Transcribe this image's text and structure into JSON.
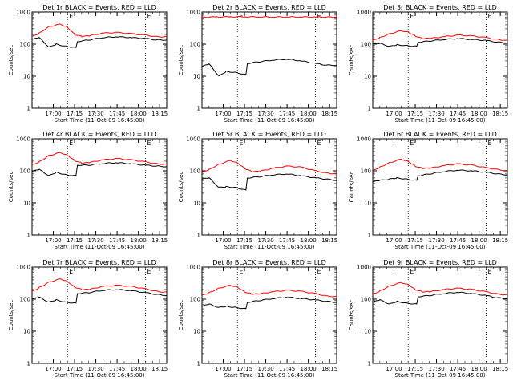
{
  "chart_data": [
    {
      "type": "line",
      "title": "Det 1r BLACK = Events, RED = LLD",
      "xlabel": "Start Time (11-Oct-09 16:45:00)",
      "ylabel": "Counts/sec",
      "yscale": "log",
      "ylim": [
        1,
        1000
      ],
      "ytick_labels": [
        "1",
        "10",
        "100",
        "1000"
      ],
      "xlim": [
        0,
        95
      ],
      "xtick_minutes": [
        15,
        30,
        45,
        60,
        75,
        90
      ],
      "xtick_labels": [
        "17:00",
        "17:15",
        "17:30",
        "17:45",
        "18:00",
        "18:15"
      ],
      "marker_lines": [
        25,
        80
      ],
      "marker_labels": [
        "E",
        "E"
      ],
      "series": [
        {
          "color": "#000000",
          "x": [
            0,
            5,
            12,
            17,
            24,
            31,
            32,
            40,
            50,
            60,
            70,
            80,
            88,
            95
          ],
          "y": [
            140,
            160,
            80,
            100,
            85,
            78,
            120,
            135,
            160,
            170,
            160,
            150,
            135,
            135
          ]
        },
        {
          "color": "#ff0000",
          "x": [
            0,
            5,
            12,
            20,
            25,
            30,
            35,
            40,
            50,
            60,
            70,
            80,
            88,
            95
          ],
          "y": [
            170,
            220,
            350,
            420,
            340,
            200,
            175,
            180,
            220,
            230,
            210,
            190,
            170,
            170
          ]
        }
      ]
    },
    {
      "type": "line",
      "title": "Det 2r BLACK = Events, RED = LLD",
      "xlabel": "Start Time (11-Oct-09 16:45:00)",
      "ylabel": "Counts/sec",
      "yscale": "log",
      "ylim": [
        1,
        1000
      ],
      "ytick_labels": [
        "1",
        "10",
        "100",
        "1000"
      ],
      "xlim": [
        0,
        95
      ],
      "xtick_minutes": [
        15,
        30,
        45,
        60,
        75,
        90
      ],
      "xtick_labels": [
        "17:00",
        "17:15",
        "17:30",
        "17:45",
        "18:00",
        "18:15"
      ],
      "marker_lines": [
        25,
        80
      ],
      "marker_labels": [
        "E",
        "E"
      ],
      "series": [
        {
          "color": "#000000",
          "x": [
            0,
            5,
            12,
            17,
            24,
            31,
            32,
            40,
            50,
            60,
            70,
            80,
            88,
            95
          ],
          "y": [
            20,
            24,
            10,
            14,
            13,
            11,
            25,
            28,
            32,
            34,
            30,
            25,
            22,
            22
          ]
        },
        {
          "color": "#ff0000",
          "x": [
            0,
            10,
            20,
            30,
            40,
            50,
            60,
            70,
            80,
            95
          ],
          "y": [
            690,
            700,
            710,
            710,
            705,
            700,
            700,
            700,
            695,
            690
          ]
        }
      ]
    },
    {
      "type": "line",
      "title": "Det 3r BLACK = Events, RED = LLD",
      "xlabel": "Start Time (11-Oct-09 16:45:00)",
      "ylabel": "Counts/sec",
      "yscale": "log",
      "ylim": [
        1,
        1000
      ],
      "ytick_labels": [
        "1",
        "10",
        "100",
        "1000"
      ],
      "xlim": [
        0,
        95
      ],
      "xtick_minutes": [
        15,
        30,
        45,
        60,
        75,
        90
      ],
      "xtick_labels": [
        "17:00",
        "17:15",
        "17:30",
        "17:45",
        "18:00",
        "18:15"
      ],
      "marker_lines": [
        25,
        80
      ],
      "marker_labels": [
        "E",
        "E"
      ],
      "series": [
        {
          "color": "#000000",
          "x": [
            0,
            5,
            12,
            17,
            24,
            31,
            32,
            40,
            50,
            60,
            70,
            80,
            88,
            95
          ],
          "y": [
            100,
            105,
            85,
            95,
            90,
            85,
            115,
            125,
            140,
            150,
            140,
            130,
            115,
            110
          ]
        },
        {
          "color": "#ff0000",
          "x": [
            0,
            5,
            12,
            20,
            25,
            30,
            35,
            40,
            50,
            60,
            70,
            80,
            88,
            95
          ],
          "y": [
            130,
            160,
            210,
            260,
            240,
            180,
            150,
            150,
            170,
            190,
            180,
            160,
            140,
            130
          ]
        }
      ]
    },
    {
      "type": "line",
      "title": "Det 4r BLACK = Events, RED = LLD",
      "xlabel": "Start Time (11-Oct-09 16:45:00)",
      "ylabel": "Counts/sec",
      "yscale": "log",
      "ylim": [
        1,
        1000
      ],
      "ytick_labels": [
        "1",
        "10",
        "100",
        "1000"
      ],
      "xlim": [
        0,
        95
      ],
      "xtick_minutes": [
        15,
        30,
        45,
        60,
        75,
        90
      ],
      "xtick_labels": [
        "17:00",
        "17:15",
        "17:30",
        "17:45",
        "18:00",
        "18:15"
      ],
      "marker_lines": [
        25,
        80
      ],
      "marker_labels": [
        "E",
        "E"
      ],
      "series": [
        {
          "color": "#000000",
          "x": [
            0,
            5,
            12,
            17,
            24,
            31,
            32,
            40,
            50,
            60,
            70,
            80,
            88,
            95
          ],
          "y": [
            95,
            110,
            70,
            90,
            75,
            70,
            150,
            150,
            170,
            180,
            165,
            150,
            140,
            135
          ]
        },
        {
          "color": "#ff0000",
          "x": [
            0,
            5,
            12,
            20,
            25,
            30,
            35,
            40,
            50,
            60,
            70,
            80,
            88,
            95
          ],
          "y": [
            150,
            190,
            300,
            370,
            310,
            210,
            175,
            180,
            220,
            240,
            220,
            190,
            165,
            160
          ]
        }
      ]
    },
    {
      "type": "line",
      "title": "Det 5r BLACK = Events, RED = LLD",
      "xlabel": "Start Time (11-Oct-09 16:45:00)",
      "ylabel": "Counts/sec",
      "yscale": "log",
      "ylim": [
        1,
        1000
      ],
      "ytick_labels": [
        "1",
        "10",
        "100",
        "1000"
      ],
      "xlim": [
        0,
        95
      ],
      "xtick_minutes": [
        15,
        30,
        45,
        60,
        75,
        90
      ],
      "xtick_labels": [
        "17:00",
        "17:15",
        "17:30",
        "17:45",
        "18:00",
        "18:15"
      ],
      "marker_lines": [
        25,
        80
      ],
      "marker_labels": [
        "E",
        "E"
      ],
      "series": [
        {
          "color": "#000000",
          "x": [
            0,
            5,
            12,
            17,
            24,
            31,
            32,
            40,
            50,
            60,
            70,
            80,
            88,
            95
          ],
          "y": [
            55,
            60,
            30,
            32,
            30,
            25,
            60,
            65,
            75,
            80,
            70,
            60,
            55,
            50
          ]
        },
        {
          "color": "#ff0000",
          "x": [
            0,
            5,
            12,
            20,
            25,
            30,
            35,
            40,
            50,
            60,
            70,
            80,
            88,
            95
          ],
          "y": [
            90,
            110,
            160,
            210,
            180,
            120,
            95,
            95,
            120,
            140,
            130,
            100,
            85,
            80
          ]
        }
      ]
    },
    {
      "type": "line",
      "title": "Det 6r BLACK = Events, RED = LLD",
      "xlabel": "Start Time (11-Oct-09 16:45:00)",
      "ylabel": "Counts/sec",
      "yscale": "log",
      "ylim": [
        1,
        1000
      ],
      "ytick_labels": [
        "1",
        "10",
        "100",
        "1000"
      ],
      "xlim": [
        0,
        95
      ],
      "xtick_minutes": [
        15,
        30,
        45,
        60,
        75,
        90
      ],
      "xtick_labels": [
        "17:00",
        "17:15",
        "17:30",
        "17:45",
        "18:00",
        "18:15"
      ],
      "marker_lines": [
        25,
        80
      ],
      "marker_labels": [
        "E",
        "E"
      ],
      "series": [
        {
          "color": "#000000",
          "x": [
            0,
            5,
            12,
            17,
            24,
            31,
            32,
            40,
            50,
            60,
            70,
            80,
            88,
            95
          ],
          "y": [
            45,
            50,
            55,
            60,
            55,
            50,
            70,
            80,
            95,
            105,
            100,
            90,
            80,
            75
          ]
        },
        {
          "color": "#ff0000",
          "x": [
            0,
            5,
            12,
            20,
            25,
            30,
            35,
            40,
            50,
            60,
            70,
            80,
            88,
            95
          ],
          "y": [
            100,
            130,
            180,
            230,
            200,
            140,
            120,
            120,
            145,
            165,
            150,
            125,
            110,
            100
          ]
        }
      ]
    },
    {
      "type": "line",
      "title": "Det 7r BLACK = Events, RED = LLD",
      "xlabel": "Start Time (11-Oct-09 16:45:00)",
      "ylabel": "Counts/sec",
      "yscale": "log",
      "ylim": [
        1,
        1000
      ],
      "ytick_labels": [
        "1",
        "10",
        "100",
        "1000"
      ],
      "xlim": [
        0,
        95
      ],
      "xtick_minutes": [
        15,
        30,
        45,
        60,
        75,
        90
      ],
      "xtick_labels": [
        "17:00",
        "17:15",
        "17:30",
        "17:45",
        "18:00",
        "18:15"
      ],
      "marker_lines": [
        25,
        80
      ],
      "marker_labels": [
        "E",
        "E"
      ],
      "series": [
        {
          "color": "#000000",
          "x": [
            0,
            5,
            12,
            17,
            24,
            31,
            32,
            40,
            50,
            60,
            70,
            80,
            88,
            95
          ],
          "y": [
            100,
            115,
            80,
            95,
            80,
            75,
            150,
            160,
            190,
            200,
            185,
            160,
            140,
            130
          ]
        },
        {
          "color": "#ff0000",
          "x": [
            0,
            5,
            12,
            20,
            25,
            30,
            35,
            40,
            50,
            60,
            70,
            80,
            88,
            95
          ],
          "y": [
            170,
            230,
            340,
            430,
            360,
            240,
            200,
            200,
            250,
            270,
            250,
            210,
            175,
            165
          ]
        }
      ]
    },
    {
      "type": "line",
      "title": "Det 8r BLACK = Events, RED = LLD",
      "xlabel": "Start Time (11-Oct-09 16:45:00)",
      "ylabel": "Counts/sec",
      "yscale": "log",
      "ylim": [
        1,
        1000
      ],
      "ytick_labels": [
        "1",
        "10",
        "100",
        "1000"
      ],
      "xlim": [
        0,
        95
      ],
      "xtick_minutes": [
        15,
        30,
        45,
        60,
        75,
        90
      ],
      "xtick_labels": [
        "17:00",
        "17:15",
        "17:30",
        "17:45",
        "18:00",
        "18:15"
      ],
      "marker_lines": [
        25,
        80
      ],
      "marker_labels": [
        "E",
        "E"
      ],
      "series": [
        {
          "color": "#000000",
          "x": [
            0,
            5,
            12,
            17,
            24,
            31,
            32,
            40,
            50,
            60,
            70,
            80,
            88,
            95
          ],
          "y": [
            60,
            70,
            55,
            60,
            55,
            50,
            80,
            90,
            105,
            115,
            105,
            95,
            85,
            80
          ]
        },
        {
          "color": "#ff0000",
          "x": [
            0,
            5,
            12,
            20,
            25,
            30,
            35,
            40,
            50,
            60,
            70,
            80,
            88,
            95
          ],
          "y": [
            130,
            160,
            220,
            270,
            240,
            170,
            145,
            145,
            170,
            190,
            175,
            150,
            125,
            120
          ]
        }
      ]
    },
    {
      "type": "line",
      "title": "Det 9r BLACK = Events, RED = LLD",
      "xlabel": "Start Time (11-Oct-09 16:45:00)",
      "ylabel": "Counts/sec",
      "yscale": "log",
      "ylim": [
        1,
        1000
      ],
      "ytick_labels": [
        "1",
        "10",
        "100",
        "1000"
      ],
      "xlim": [
        0,
        95
      ],
      "xtick_minutes": [
        15,
        30,
        45,
        60,
        75,
        90
      ],
      "xtick_labels": [
        "17:00",
        "17:15",
        "17:30",
        "17:45",
        "18:00",
        "18:15"
      ],
      "marker_lines": [
        25,
        80
      ],
      "marker_labels": [
        "E",
        "E"
      ],
      "series": [
        {
          "color": "#000000",
          "x": [
            0,
            5,
            12,
            17,
            24,
            31,
            32,
            40,
            50,
            60,
            70,
            80,
            88,
            95
          ],
          "y": [
            80,
            95,
            70,
            85,
            75,
            70,
            120,
            130,
            150,
            165,
            150,
            130,
            110,
            105
          ]
        },
        {
          "color": "#ff0000",
          "x": [
            0,
            5,
            12,
            20,
            25,
            30,
            35,
            40,
            50,
            60,
            70,
            80,
            88,
            95
          ],
          "y": [
            140,
            180,
            260,
            330,
            290,
            200,
            170,
            170,
            200,
            220,
            200,
            170,
            145,
            135
          ]
        }
      ]
    }
  ]
}
